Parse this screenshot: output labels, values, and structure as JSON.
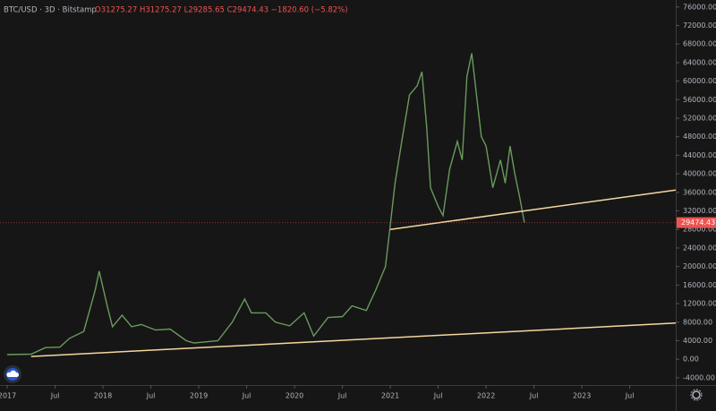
{
  "chart_data": {
    "type": "line",
    "title": "BTC/USD · 3D · Bitstamp",
    "subtitle": "O31275.27 H31275.27 L29285.65 C29474.43 −1820.60 (−5.82%)",
    "x": [
      2017.0,
      2017.25,
      2017.4,
      2017.55,
      2017.65,
      2017.8,
      2017.92,
      2017.96,
      2018.05,
      2018.1,
      2018.2,
      2018.3,
      2018.4,
      2018.55,
      2018.7,
      2018.87,
      2018.95,
      2019.2,
      2019.35,
      2019.48,
      2019.55,
      2019.7,
      2019.8,
      2019.95,
      2020.1,
      2020.2,
      2020.35,
      2020.5,
      2020.6,
      2020.75,
      2020.85,
      2020.95,
      2021.0,
      2021.05,
      2021.12,
      2021.2,
      2021.28,
      2021.33,
      2021.38,
      2021.42,
      2021.5,
      2021.55,
      2021.62,
      2021.7,
      2021.75,
      2021.8,
      2021.85,
      2021.9,
      2021.95,
      2022.0,
      2022.07,
      2022.15,
      2022.2,
      2022.25,
      2022.3,
      2022.35,
      2022.4
    ],
    "series": [
      {
        "color": "#6a9a5e",
        "values": [
          1000,
          1100,
          2500,
          2600,
          4500,
          6000,
          15000,
          19000,
          11000,
          7000,
          9500,
          7000,
          7500,
          6300,
          6500,
          4000,
          3500,
          4000,
          8000,
          13000,
          10000,
          10000,
          8000,
          7200,
          10000,
          5000,
          9000,
          9200,
          11500,
          10500,
          15000,
          20000,
          29000,
          38000,
          47000,
          57000,
          59000,
          62000,
          50000,
          37000,
          33000,
          31000,
          41000,
          47000,
          43000,
          61000,
          66000,
          57000,
          48000,
          46000,
          37000,
          43000,
          38000,
          46000,
          40000,
          35000,
          29474.43
        ]
      }
    ],
    "trendlines": [
      {
        "color": "#f5d79e",
        "x": [
          2021.0,
          2023.98
        ],
        "values": [
          28000,
          36500
        ]
      },
      {
        "color": "#f5d79e",
        "x": [
          2017.25,
          2023.98
        ],
        "values": [
          600,
          7800
        ]
      }
    ],
    "last_price": {
      "value": 29474.43,
      "label": "29474.43"
    },
    "xlim": [
      2016.925,
      2023.98
    ],
    "ylim": [
      -7500,
      77500
    ],
    "xticks": [
      {
        "value": 2017,
        "label": "2017"
      },
      {
        "value": 2017.5,
        "label": "Jul"
      },
      {
        "value": 2018,
        "label": "2018"
      },
      {
        "value": 2018.5,
        "label": "Jul"
      },
      {
        "value": 2019,
        "label": "2019"
      },
      {
        "value": 2019.5,
        "label": "Jul"
      },
      {
        "value": 2020,
        "label": "2020"
      },
      {
        "value": 2020.5,
        "label": "Jul"
      },
      {
        "value": 2021,
        "label": "2021"
      },
      {
        "value": 2021.5,
        "label": "Jul"
      },
      {
        "value": 2022,
        "label": "2022"
      },
      {
        "value": 2022.5,
        "label": "Jul"
      },
      {
        "value": 2023,
        "label": "2023"
      },
      {
        "value": 2023.5,
        "label": "Jul"
      }
    ],
    "yticks": [
      {
        "value": -4000,
        "label": "-4000.00"
      },
      {
        "value": 0,
        "label": "0.00"
      },
      {
        "value": 4000,
        "label": "4000.00"
      },
      {
        "value": 8000,
        "label": "8000.00"
      },
      {
        "value": 12000,
        "label": "12000.00"
      },
      {
        "value": 16000,
        "label": "16000.00"
      },
      {
        "value": 20000,
        "label": "20000.00"
      },
      {
        "value": 24000,
        "label": "24000.00"
      },
      {
        "value": 28000,
        "label": "28000.00"
      },
      {
        "value": 32000,
        "label": "32000.00"
      },
      {
        "value": 36000,
        "label": "36000.00"
      },
      {
        "value": 40000,
        "label": "40000.00"
      },
      {
        "value": 44000,
        "label": "44000.00"
      },
      {
        "value": 48000,
        "label": "48000.00"
      },
      {
        "value": 52000,
        "label": "52000.00"
      },
      {
        "value": 56000,
        "label": "56000.00"
      },
      {
        "value": 60000,
        "label": "60000.00"
      },
      {
        "value": 64000,
        "label": "64000.00"
      },
      {
        "value": 68000,
        "label": "68000.00"
      },
      {
        "value": 72000,
        "label": "72000.00"
      },
      {
        "value": 76000,
        "label": "76000.00"
      }
    ]
  }
}
